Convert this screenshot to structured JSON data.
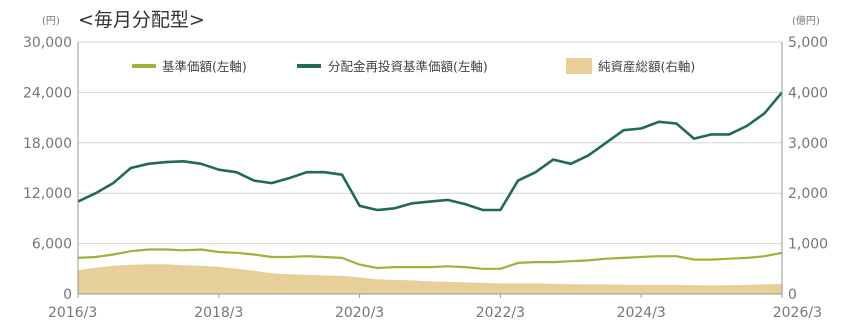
{
  "chart_data": {
    "type": "line",
    "title": "<毎月分配型>",
    "left_unit": "(円)",
    "right_unit": "(億円)",
    "left_ylim": [
      0,
      30000
    ],
    "right_ylim": [
      0,
      5000
    ],
    "left_ticks": [
      "0",
      "6,000",
      "12,000",
      "18,000",
      "24,000",
      "30,000"
    ],
    "right_ticks": [
      "0",
      "1,000",
      "2,000",
      "3,000",
      "4,000",
      "5,000"
    ],
    "x_ticks": [
      "2016/3",
      "2018/3",
      "2020/3",
      "2022/3",
      "2024/3",
      "2026/3"
    ],
    "grid": true,
    "legend_position": "top",
    "x": [
      "2016/3",
      "2016/6",
      "2016/9",
      "2016/12",
      "2017/3",
      "2017/6",
      "2017/9",
      "2017/12",
      "2018/3",
      "2018/6",
      "2018/9",
      "2018/12",
      "2019/3",
      "2019/6",
      "2019/9",
      "2019/12",
      "2020/3",
      "2020/6",
      "2020/9",
      "2020/12",
      "2021/3",
      "2021/6",
      "2021/9",
      "2021/12",
      "2022/3",
      "2022/6",
      "2022/9",
      "2022/12",
      "2023/3",
      "2023/6",
      "2023/9",
      "2023/12",
      "2024/3",
      "2024/6",
      "2024/9",
      "2024/12",
      "2025/3",
      "2025/6",
      "2025/9",
      "2025/12",
      "2026/3"
    ],
    "series": [
      {
        "name": "基準価額(左軸)",
        "axis": "left",
        "color": "#9ab53a",
        "values": [
          4300,
          4400,
          4700,
          5100,
          5300,
          5300,
          5200,
          5300,
          5000,
          4900,
          4700,
          4400,
          4400,
          4500,
          4400,
          4300,
          3500,
          3100,
          3200,
          3200,
          3200,
          3300,
          3200,
          3000,
          3000,
          3700,
          3800,
          3800,
          3900,
          4000,
          4200,
          4300,
          4400,
          4500,
          4500,
          4100,
          4100,
          4200,
          4300,
          4500,
          4900
        ]
      },
      {
        "name": "分配金再投資基準価額(左軸)",
        "axis": "left",
        "color": "#1f6b56",
        "values": [
          11000,
          12000,
          13200,
          15000,
          15500,
          15700,
          15800,
          15500,
          14800,
          14500,
          13500,
          13200,
          13800,
          14500,
          14500,
          14200,
          10500,
          10000,
          10200,
          10800,
          11000,
          11200,
          10700,
          10000,
          10000,
          13500,
          14500,
          16000,
          15500,
          16500,
          18000,
          19500,
          19700,
          20500,
          20300,
          18500,
          19000,
          19000,
          20000,
          21500,
          24000
        ]
      },
      {
        "name": "純資産総額(右軸)",
        "axis": "right",
        "color": "#e6cf98",
        "values": [
          470,
          520,
          560,
          580,
          590,
          590,
          570,
          560,
          540,
          500,
          460,
          410,
          390,
          380,
          370,
          360,
          330,
          290,
          280,
          270,
          250,
          240,
          230,
          220,
          210,
          210,
          210,
          200,
          195,
          190,
          190,
          185,
          180,
          180,
          180,
          175,
          170,
          175,
          180,
          190,
          200
        ]
      }
    ]
  }
}
